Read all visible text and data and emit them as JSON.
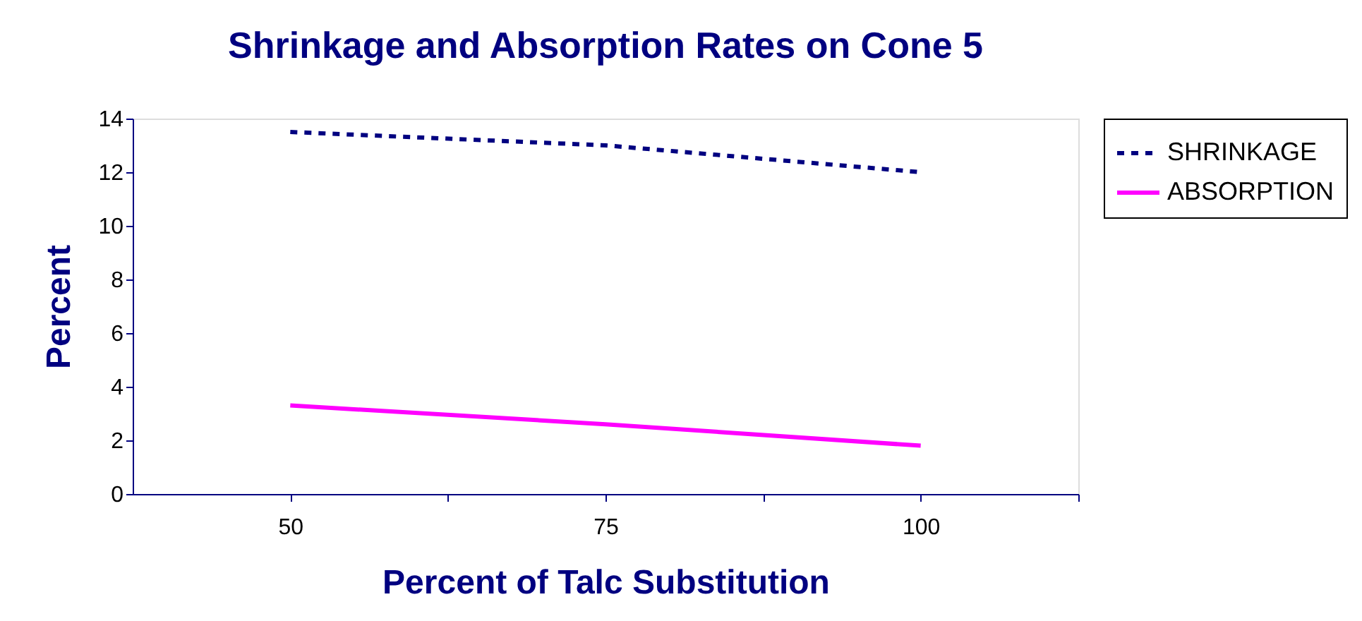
{
  "chart_data": {
    "type": "line",
    "title": "Shrinkage and Absorption Rates on Cone 5",
    "xlabel": "Percent of Talc Substitution",
    "ylabel": "Percent",
    "x": [
      50,
      75,
      100
    ],
    "series": [
      {
        "name": "SHRINKAGE",
        "color": "#000080",
        "values": [
          13.5,
          13.0,
          12.0
        ],
        "line_style": "dotted"
      },
      {
        "name": "ABSORPTION",
        "color": "#ff00ff",
        "values": [
          3.3,
          2.6,
          1.8
        ],
        "line_style": "solid"
      }
    ],
    "xlim": [
      37.5,
      112.5
    ],
    "xticks": [
      50,
      {
        "value": 62.5,
        "label": null
      },
      75,
      {
        "value": 87.5,
        "label": null
      },
      100,
      {
        "value": 112.5,
        "label": null
      }
    ],
    "ylim": [
      0,
      14
    ],
    "yticks": [
      0,
      2,
      4,
      6,
      8,
      10,
      12,
      14
    ],
    "grid": false,
    "legend": "right",
    "marker": "none"
  }
}
